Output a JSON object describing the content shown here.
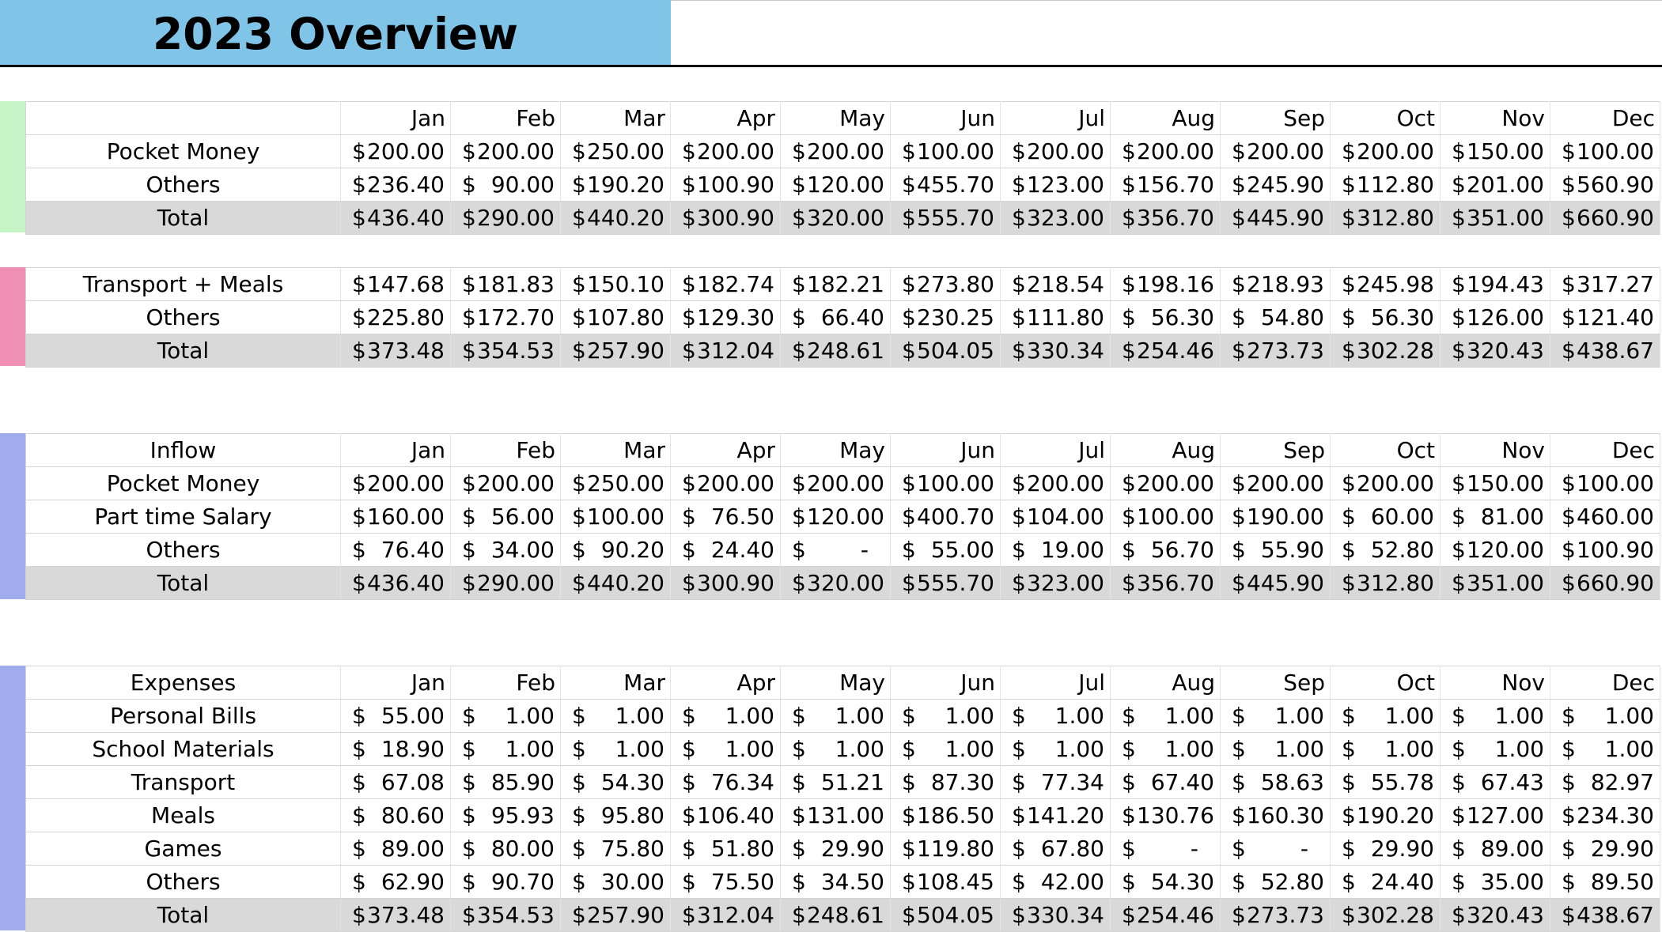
{
  "header": {
    "title": "2023 Overview",
    "title_bg": "#80c4e8"
  },
  "colors": {
    "section1_accent": "#c6f5c8",
    "section2_accent": "#f08fb4",
    "section3_accent": "#a1acef",
    "section4_accent": "#a1acef",
    "total_row_bg": "#d9d9d9"
  },
  "sections": [
    {
      "header": "",
      "months": [
        "Jan",
        "Feb",
        "Mar",
        "Apr",
        "May",
        "Jun",
        "Jul",
        "Aug",
        "Sep",
        "Oct",
        "Nov",
        "Dec"
      ],
      "rows": [
        {
          "label": "Pocket Money",
          "values": [
            "200.00",
            "200.00",
            "250.00",
            "200.00",
            "200.00",
            "100.00",
            "200.00",
            "200.00",
            "200.00",
            "200.00",
            "150.00",
            "100.00"
          ]
        },
        {
          "label": "Others",
          "values": [
            "236.40",
            "90.00",
            "190.20",
            "100.90",
            "120.00",
            "455.70",
            "123.00",
            "156.70",
            "245.90",
            "112.80",
            "201.00",
            "560.90"
          ]
        },
        {
          "label": "Total",
          "values": [
            "436.40",
            "290.00",
            "440.20",
            "300.90",
            "320.00",
            "555.70",
            "323.00",
            "356.70",
            "445.90",
            "312.80",
            "351.00",
            "660.90"
          ]
        }
      ]
    },
    {
      "rows": [
        {
          "label": "Transport + Meals",
          "values": [
            "147.68",
            "181.83",
            "150.10",
            "182.74",
            "182.21",
            "273.80",
            "218.54",
            "198.16",
            "218.93",
            "245.98",
            "194.43",
            "317.27"
          ]
        },
        {
          "label": "Others",
          "values": [
            "225.80",
            "172.70",
            "107.80",
            "129.30",
            "66.40",
            "230.25",
            "111.80",
            "56.30",
            "54.80",
            "56.30",
            "126.00",
            "121.40"
          ]
        },
        {
          "label": "Total",
          "values": [
            "373.48",
            "354.53",
            "257.90",
            "312.04",
            "248.61",
            "504.05",
            "330.34",
            "254.46",
            "273.73",
            "302.28",
            "320.43",
            "438.67"
          ]
        }
      ]
    },
    {
      "header": "Inflow",
      "months": [
        "Jan",
        "Feb",
        "Mar",
        "Apr",
        "May",
        "Jun",
        "Jul",
        "Aug",
        "Sep",
        "Oct",
        "Nov",
        "Dec"
      ],
      "rows": [
        {
          "label": "Pocket Money",
          "values": [
            "200.00",
            "200.00",
            "250.00",
            "200.00",
            "200.00",
            "100.00",
            "200.00",
            "200.00",
            "200.00",
            "200.00",
            "150.00",
            "100.00"
          ]
        },
        {
          "label": "Part time Salary",
          "values": [
            "160.00",
            "56.00",
            "100.00",
            "76.50",
            "120.00",
            "400.70",
            "104.00",
            "100.00",
            "190.00",
            "60.00",
            "81.00",
            "460.00"
          ]
        },
        {
          "label": "Others",
          "values": [
            "76.40",
            "34.00",
            "90.20",
            "24.40",
            "-",
            "55.00",
            "19.00",
            "56.70",
            "55.90",
            "52.80",
            "120.00",
            "100.90"
          ]
        },
        {
          "label": "Total",
          "values": [
            "436.40",
            "290.00",
            "440.20",
            "300.90",
            "320.00",
            "555.70",
            "323.00",
            "356.70",
            "445.90",
            "312.80",
            "351.00",
            "660.90"
          ]
        }
      ]
    },
    {
      "header": "Expenses",
      "months": [
        "Jan",
        "Feb",
        "Mar",
        "Apr",
        "May",
        "Jun",
        "Jul",
        "Aug",
        "Sep",
        "Oct",
        "Nov",
        "Dec"
      ],
      "rows": [
        {
          "label": "Personal Bills",
          "values": [
            "55.00",
            "1.00",
            "1.00",
            "1.00",
            "1.00",
            "1.00",
            "1.00",
            "1.00",
            "1.00",
            "1.00",
            "1.00",
            "1.00"
          ]
        },
        {
          "label": "School Materials",
          "values": [
            "18.90",
            "1.00",
            "1.00",
            "1.00",
            "1.00",
            "1.00",
            "1.00",
            "1.00",
            "1.00",
            "1.00",
            "1.00",
            "1.00"
          ]
        },
        {
          "label": "Transport",
          "values": [
            "67.08",
            "85.90",
            "54.30",
            "76.34",
            "51.21",
            "87.30",
            "77.34",
            "67.40",
            "58.63",
            "55.78",
            "67.43",
            "82.97"
          ]
        },
        {
          "label": "Meals",
          "values": [
            "80.60",
            "95.93",
            "95.80",
            "106.40",
            "131.00",
            "186.50",
            "141.20",
            "130.76",
            "160.30",
            "190.20",
            "127.00",
            "234.30"
          ]
        },
        {
          "label": "Games",
          "values": [
            "89.00",
            "80.00",
            "75.80",
            "51.80",
            "29.90",
            "119.80",
            "67.80",
            "-",
            "-",
            "29.90",
            "89.00",
            "29.90"
          ]
        },
        {
          "label": "Others",
          "values": [
            "62.90",
            "90.70",
            "30.00",
            "75.50",
            "34.50",
            "108.45",
            "42.00",
            "54.30",
            "52.80",
            "24.40",
            "35.00",
            "89.50"
          ]
        },
        {
          "label": "Total",
          "values": [
            "373.48",
            "354.53",
            "257.90",
            "312.04",
            "248.61",
            "504.05",
            "330.34",
            "254.46",
            "273.73",
            "302.28",
            "320.43",
            "438.67"
          ]
        }
      ]
    }
  ]
}
